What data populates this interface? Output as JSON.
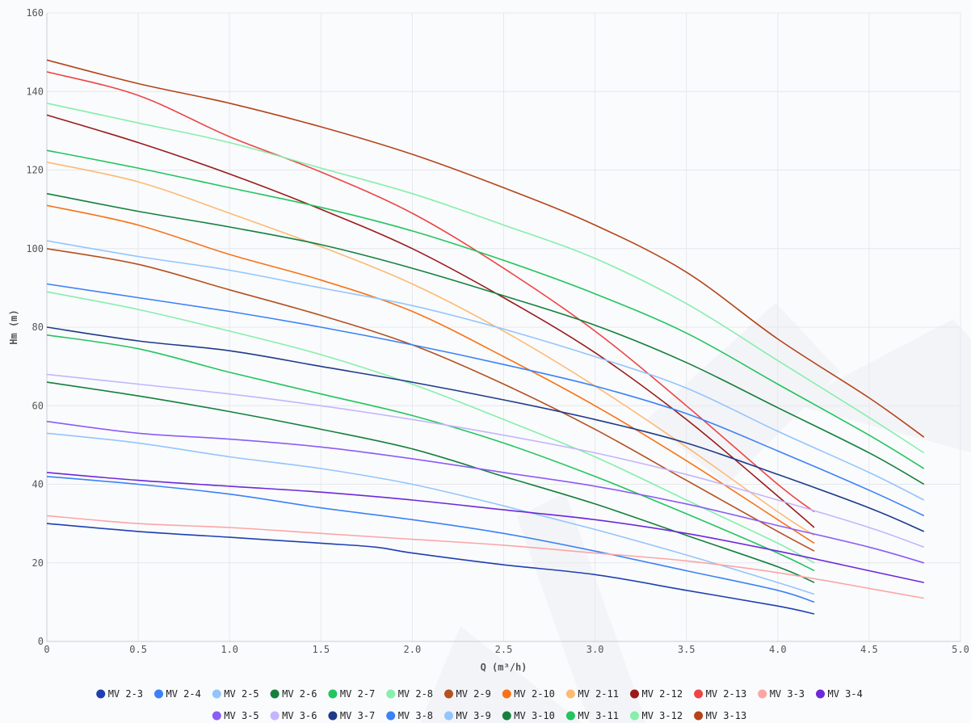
{
  "chart_data": {
    "type": "line",
    "xlabel": "Q (m³/h)",
    "ylabel": "Hm (m)",
    "xlim": [
      0,
      5
    ],
    "ylim": [
      0,
      160
    ],
    "xticks": [
      "0",
      "0.5",
      "1.0",
      "1.5",
      "2.0",
      "2.5",
      "3.0",
      "3.5",
      "4.0",
      "4.5",
      "5.0"
    ],
    "yticks": [
      "0",
      "20",
      "40",
      "60",
      "80",
      "100",
      "120",
      "140",
      "160"
    ],
    "grid": true,
    "legend_position": "bottom",
    "series": [
      {
        "name": "MV 2-3",
        "color": "#1e40af",
        "x": [
          0,
          0.5,
          1.0,
          1.5,
          1.8,
          2.0,
          2.5,
          3.0,
          3.5,
          4.0,
          4.2
        ],
        "y": [
          30,
          28,
          26.5,
          25,
          24,
          22.5,
          19.5,
          17,
          13,
          9,
          7
        ]
      },
      {
        "name": "MV 2-4",
        "color": "#3b82f6",
        "x": [
          0,
          0.5,
          1.0,
          1.5,
          2.0,
          2.5,
          3.0,
          3.5,
          4.0,
          4.2
        ],
        "y": [
          42,
          40,
          37.5,
          34,
          31,
          27.5,
          23,
          18,
          13,
          10
        ]
      },
      {
        "name": "MV 2-5",
        "color": "#93c5fd",
        "x": [
          0,
          0.5,
          1.0,
          1.5,
          2.0,
          2.5,
          3.0,
          3.5,
          4.0,
          4.2
        ],
        "y": [
          53,
          50.5,
          47,
          44,
          40,
          34.5,
          28.5,
          22,
          15,
          12
        ]
      },
      {
        "name": "MV 2-6",
        "color": "#15803d",
        "x": [
          0,
          0.5,
          1.0,
          1.5,
          2.0,
          2.5,
          3.0,
          3.5,
          4.0,
          4.2
        ],
        "y": [
          66,
          62.5,
          58.5,
          54,
          49,
          42,
          35,
          27,
          19,
          15
        ]
      },
      {
        "name": "MV 2-7",
        "color": "#22c55e",
        "x": [
          0,
          0.5,
          1.0,
          1.5,
          2.0,
          2.5,
          3.0,
          3.5,
          4.0,
          4.2
        ],
        "y": [
          78,
          74.5,
          68.5,
          63,
          57.5,
          50.5,
          42,
          32.5,
          22.5,
          18
        ]
      },
      {
        "name": "MV 2-8",
        "color": "#86efac",
        "x": [
          0,
          0.5,
          1.0,
          1.5,
          2.0,
          2.5,
          3.0,
          3.5,
          4.0,
          4.2
        ],
        "y": [
          89,
          84.5,
          79,
          73,
          65.5,
          56.5,
          47,
          36,
          25,
          20
        ]
      },
      {
        "name": "MV 2-9",
        "color": "#b5501f",
        "x": [
          0,
          0.5,
          1.0,
          1.5,
          2.0,
          2.5,
          3.0,
          3.5,
          4.0,
          4.2
        ],
        "y": [
          100,
          96,
          89.5,
          83,
          75.5,
          65.5,
          54,
          41,
          28,
          23
        ]
      },
      {
        "name": "MV 2-10",
        "color": "#f97316",
        "x": [
          0,
          0.5,
          1.0,
          1.5,
          2.0,
          2.5,
          3.0,
          3.5,
          4.0,
          4.2
        ],
        "y": [
          111,
          106,
          98.5,
          92,
          84,
          72.5,
          60,
          46,
          31,
          25
        ]
      },
      {
        "name": "MV 2-11",
        "color": "#fdba74",
        "x": [
          0,
          0.5,
          1.0,
          1.5,
          2.0,
          2.5,
          3.0,
          3.5,
          4.0,
          4.2
        ],
        "y": [
          122,
          117,
          109,
          100.5,
          91,
          79,
          65,
          49.5,
          33,
          27
        ]
      },
      {
        "name": "MV 2-12",
        "color": "#991b1b",
        "x": [
          0,
          0.5,
          1.0,
          1.5,
          2.0,
          2.5,
          3.0,
          3.5,
          4.0,
          4.2
        ],
        "y": [
          134,
          127,
          119,
          110,
          100,
          87.5,
          73.5,
          56.5,
          37,
          29
        ]
      },
      {
        "name": "MV 2-13",
        "color": "#ef4444",
        "x": [
          0,
          0.5,
          1.0,
          1.5,
          2.0,
          2.5,
          3.0,
          3.5,
          4.0,
          4.2
        ],
        "y": [
          145,
          139,
          128.5,
          119.5,
          109,
          95,
          79,
          60,
          40,
          33
        ]
      },
      {
        "name": "MV 3-3",
        "color": "#fca5a5",
        "x": [
          0,
          0.5,
          1.0,
          1.5,
          2.0,
          2.5,
          3.0,
          3.5,
          4.0,
          4.5,
          4.8
        ],
        "y": [
          32,
          30,
          29,
          27.5,
          26,
          24.5,
          22.5,
          20.5,
          17.5,
          13.5,
          11
        ]
      },
      {
        "name": "MV 3-4",
        "color": "#6d28d9",
        "x": [
          0,
          0.5,
          1.0,
          1.5,
          2.0,
          2.5,
          3.0,
          3.5,
          4.0,
          4.5,
          4.8
        ],
        "y": [
          43,
          41,
          39.5,
          38,
          36,
          33.5,
          31,
          27.5,
          23,
          18,
          15
        ]
      },
      {
        "name": "MV 3-5",
        "color": "#8b5cf6",
        "x": [
          0,
          0.5,
          1.0,
          1.5,
          2.0,
          2.5,
          3.0,
          3.5,
          4.0,
          4.5,
          4.8
        ],
        "y": [
          56,
          53,
          51.5,
          49.5,
          46.5,
          43,
          39.5,
          35,
          29.5,
          24,
          20
        ]
      },
      {
        "name": "MV 3-6",
        "color": "#c4b5fd",
        "x": [
          0,
          0.5,
          1.0,
          1.5,
          2.0,
          2.5,
          3.0,
          3.5,
          4.0,
          4.5,
          4.8
        ],
        "y": [
          68,
          65.5,
          63,
          60,
          56.5,
          52.5,
          48,
          42.5,
          36,
          29,
          24
        ]
      },
      {
        "name": "MV 3-7",
        "color": "#1e3a8a",
        "x": [
          0,
          0.5,
          1.0,
          1.5,
          2.0,
          2.5,
          3.0,
          3.5,
          4.0,
          4.5,
          4.8
        ],
        "y": [
          80,
          76.5,
          74,
          70,
          66,
          61.5,
          56.5,
          50.5,
          42.5,
          34,
          28
        ]
      },
      {
        "name": "MV 3-8",
        "color": "#3b82f6",
        "x": [
          0,
          0.5,
          1.0,
          1.5,
          2.0,
          2.5,
          3.0,
          3.5,
          4.0,
          4.5,
          4.8
        ],
        "y": [
          91,
          87.5,
          84,
          80,
          75.5,
          70.5,
          65,
          58,
          48.5,
          38.5,
          32
        ]
      },
      {
        "name": "MV 3-9",
        "color": "#93c5fd",
        "x": [
          0,
          0.5,
          1.0,
          1.5,
          2.0,
          2.5,
          3.0,
          3.5,
          4.0,
          4.5,
          4.8
        ],
        "y": [
          102,
          98,
          94.5,
          90,
          85.5,
          79.5,
          72.5,
          64.5,
          53.5,
          43,
          36
        ]
      },
      {
        "name": "MV 3-10",
        "color": "#15803d",
        "x": [
          0,
          0.5,
          1.0,
          1.5,
          2.0,
          2.5,
          3.0,
          3.5,
          4.0,
          4.5,
          4.8
        ],
        "y": [
          114,
          109.5,
          105.5,
          101,
          95,
          88,
          80.5,
          71,
          59.5,
          48,
          40
        ]
      },
      {
        "name": "MV 3-11",
        "color": "#22c55e",
        "x": [
          0,
          0.5,
          1.0,
          1.5,
          2.0,
          2.5,
          3.0,
          3.5,
          4.0,
          4.5,
          4.8
        ],
        "y": [
          125,
          120.5,
          115.5,
          110.5,
          104.5,
          97,
          88.5,
          78.5,
          65.5,
          52.5,
          44
        ]
      },
      {
        "name": "MV 3-12",
        "color": "#86efac",
        "x": [
          0,
          0.5,
          1.0,
          1.5,
          2.0,
          2.5,
          3.0,
          3.5,
          4.0,
          4.5,
          4.8
        ],
        "y": [
          137,
          132,
          127,
          120.5,
          114,
          106,
          97.5,
          86,
          71.5,
          57,
          48
        ]
      },
      {
        "name": "MV 3-13",
        "color": "#b5441a",
        "x": [
          0,
          0.5,
          1.0,
          1.5,
          2.0,
          2.5,
          3.0,
          3.5,
          4.0,
          4.5,
          4.8
        ],
        "y": [
          148,
          142,
          137,
          131,
          124,
          115.5,
          106,
          94,
          77,
          62,
          52
        ]
      }
    ]
  }
}
